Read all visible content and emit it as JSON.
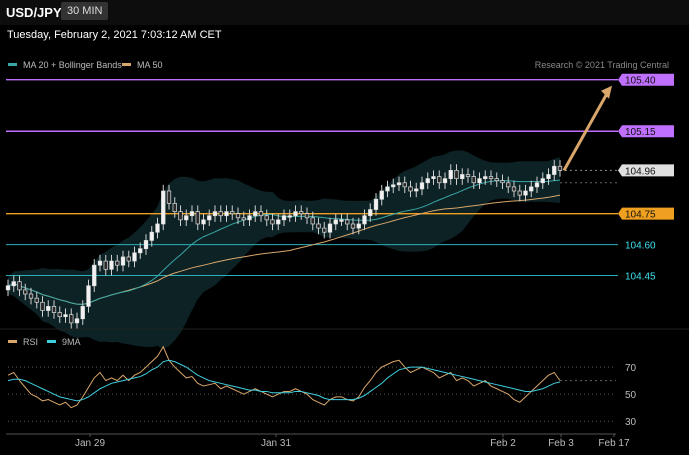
{
  "header": {
    "symbol": "USD/JPY",
    "timeframe": "30 MIN",
    "datetime": "Tuesday, February 2, 2021 7:03:12 AM CET"
  },
  "legend_main": [
    {
      "label": "MA 20 + Bollinger Bands",
      "color": "#3aa6a6"
    },
    {
      "label": "MA 50",
      "color": "#d9a66b"
    }
  ],
  "legend_rsi": [
    {
      "label": "RSI",
      "color": "#d9a66b"
    },
    {
      "label": "9MA",
      "color": "#3fd0e0"
    }
  ],
  "credit": "Research © 2021 Trading Central",
  "chart_data": [
    {
      "type": "candlestick",
      "ylim": [
        104.2,
        105.52
      ],
      "x_labels": [
        "Jan 29",
        "Jan 31",
        "Feb 2",
        "Feb 3",
        "Feb 17"
      ],
      "levels": [
        {
          "value": 105.4,
          "label": "105.40",
          "color": "#c070ff",
          "style": "resistance",
          "tag_text_color": "#111"
        },
        {
          "value": 105.15,
          "label": "105.15",
          "color": "#c070ff",
          "style": "resistance",
          "tag_text_color": "#111"
        },
        {
          "value": 104.96,
          "label": "104.96",
          "color": "#e0e0e0",
          "style": "last-price",
          "tag_text_color": "#111"
        },
        {
          "value": 104.75,
          "label": "104.75",
          "color": "#f0a020",
          "style": "pivot",
          "tag_text_color": "#111"
        },
        {
          "value": 104.6,
          "label": "104.60",
          "color": "#2ab0b8",
          "style": "support",
          "tag_text_color": "#3ee0f0"
        },
        {
          "value": 104.45,
          "label": "104.45",
          "color": "#2ab0b8",
          "style": "support",
          "tag_text_color": "#3ee0f0"
        }
      ],
      "target_arrow": {
        "from": 104.96,
        "to": 105.4
      },
      "close": [
        104.4,
        104.42,
        104.38,
        104.36,
        104.34,
        104.32,
        104.28,
        104.3,
        104.27,
        104.25,
        104.26,
        104.22,
        104.24,
        104.3,
        104.4,
        104.5,
        104.52,
        104.48,
        104.52,
        104.5,
        104.54,
        104.52,
        104.56,
        104.58,
        104.62,
        104.66,
        104.7,
        104.86,
        104.8,
        104.76,
        104.72,
        104.74,
        104.76,
        104.7,
        104.72,
        104.74,
        104.76,
        104.74,
        104.76,
        104.75,
        104.73,
        104.72,
        104.74,
        104.76,
        104.74,
        104.72,
        104.7,
        104.72,
        104.74,
        104.74,
        104.76,
        104.75,
        104.73,
        104.7,
        104.68,
        104.66,
        104.7,
        104.72,
        104.72,
        104.7,
        104.68,
        104.7,
        104.74,
        104.77,
        104.82,
        104.86,
        104.88,
        104.89,
        104.9,
        104.88,
        104.86,
        104.87,
        104.9,
        104.92,
        104.93,
        104.9,
        104.92,
        104.96,
        104.92,
        104.94,
        104.93,
        104.9,
        104.92,
        104.93,
        104.92,
        104.91,
        104.9,
        104.88,
        104.86,
        104.84,
        104.86,
        104.88,
        104.9,
        104.92,
        104.94,
        104.98,
        104.96
      ]
    },
    {
      "type": "line",
      "title": "RSI",
      "ylim": [
        25,
        90
      ],
      "yticks": [
        70,
        50,
        30
      ],
      "series": [
        {
          "name": "RSI",
          "color": "#d9a66b",
          "values": [
            64,
            66,
            60,
            55,
            50,
            48,
            45,
            46,
            44,
            42,
            44,
            40,
            42,
            48,
            55,
            62,
            66,
            60,
            62,
            60,
            64,
            60,
            64,
            66,
            70,
            74,
            78,
            85,
            75,
            70,
            66,
            62,
            63,
            58,
            56,
            57,
            58,
            54,
            56,
            54,
            52,
            50,
            52,
            54,
            52,
            50,
            48,
            50,
            52,
            52,
            54,
            52,
            50,
            46,
            44,
            42,
            46,
            48,
            48,
            46,
            45,
            48,
            55,
            60,
            66,
            70,
            72,
            74,
            75,
            70,
            66,
            68,
            70,
            68,
            66,
            62,
            64,
            66,
            60,
            62,
            60,
            56,
            58,
            60,
            56,
            54,
            52,
            50,
            46,
            44,
            48,
            52,
            56,
            60,
            64,
            66,
            60
          ]
        },
        {
          "name": "9MA",
          "color": "#3fd0e0",
          "values": [
            60,
            61,
            61,
            60,
            58,
            56,
            54,
            52,
            50,
            48,
            47,
            46,
            45,
            46,
            48,
            51,
            54,
            56,
            58,
            59,
            60,
            61,
            62,
            63,
            65,
            68,
            70,
            74,
            75,
            74,
            72,
            70,
            67,
            64,
            62,
            60,
            59,
            58,
            57,
            56,
            55,
            54,
            53,
            53,
            52,
            52,
            51,
            51,
            51,
            51,
            52,
            52,
            51,
            50,
            49,
            47,
            46,
            46,
            46,
            46,
            46,
            47,
            49,
            52,
            55,
            58,
            62,
            65,
            68,
            69,
            70,
            70,
            70,
            69,
            68,
            67,
            66,
            65,
            64,
            63,
            62,
            61,
            60,
            59,
            58,
            57,
            56,
            55,
            54,
            53,
            52,
            52,
            53,
            54,
            56,
            58,
            59
          ]
        }
      ]
    }
  ]
}
